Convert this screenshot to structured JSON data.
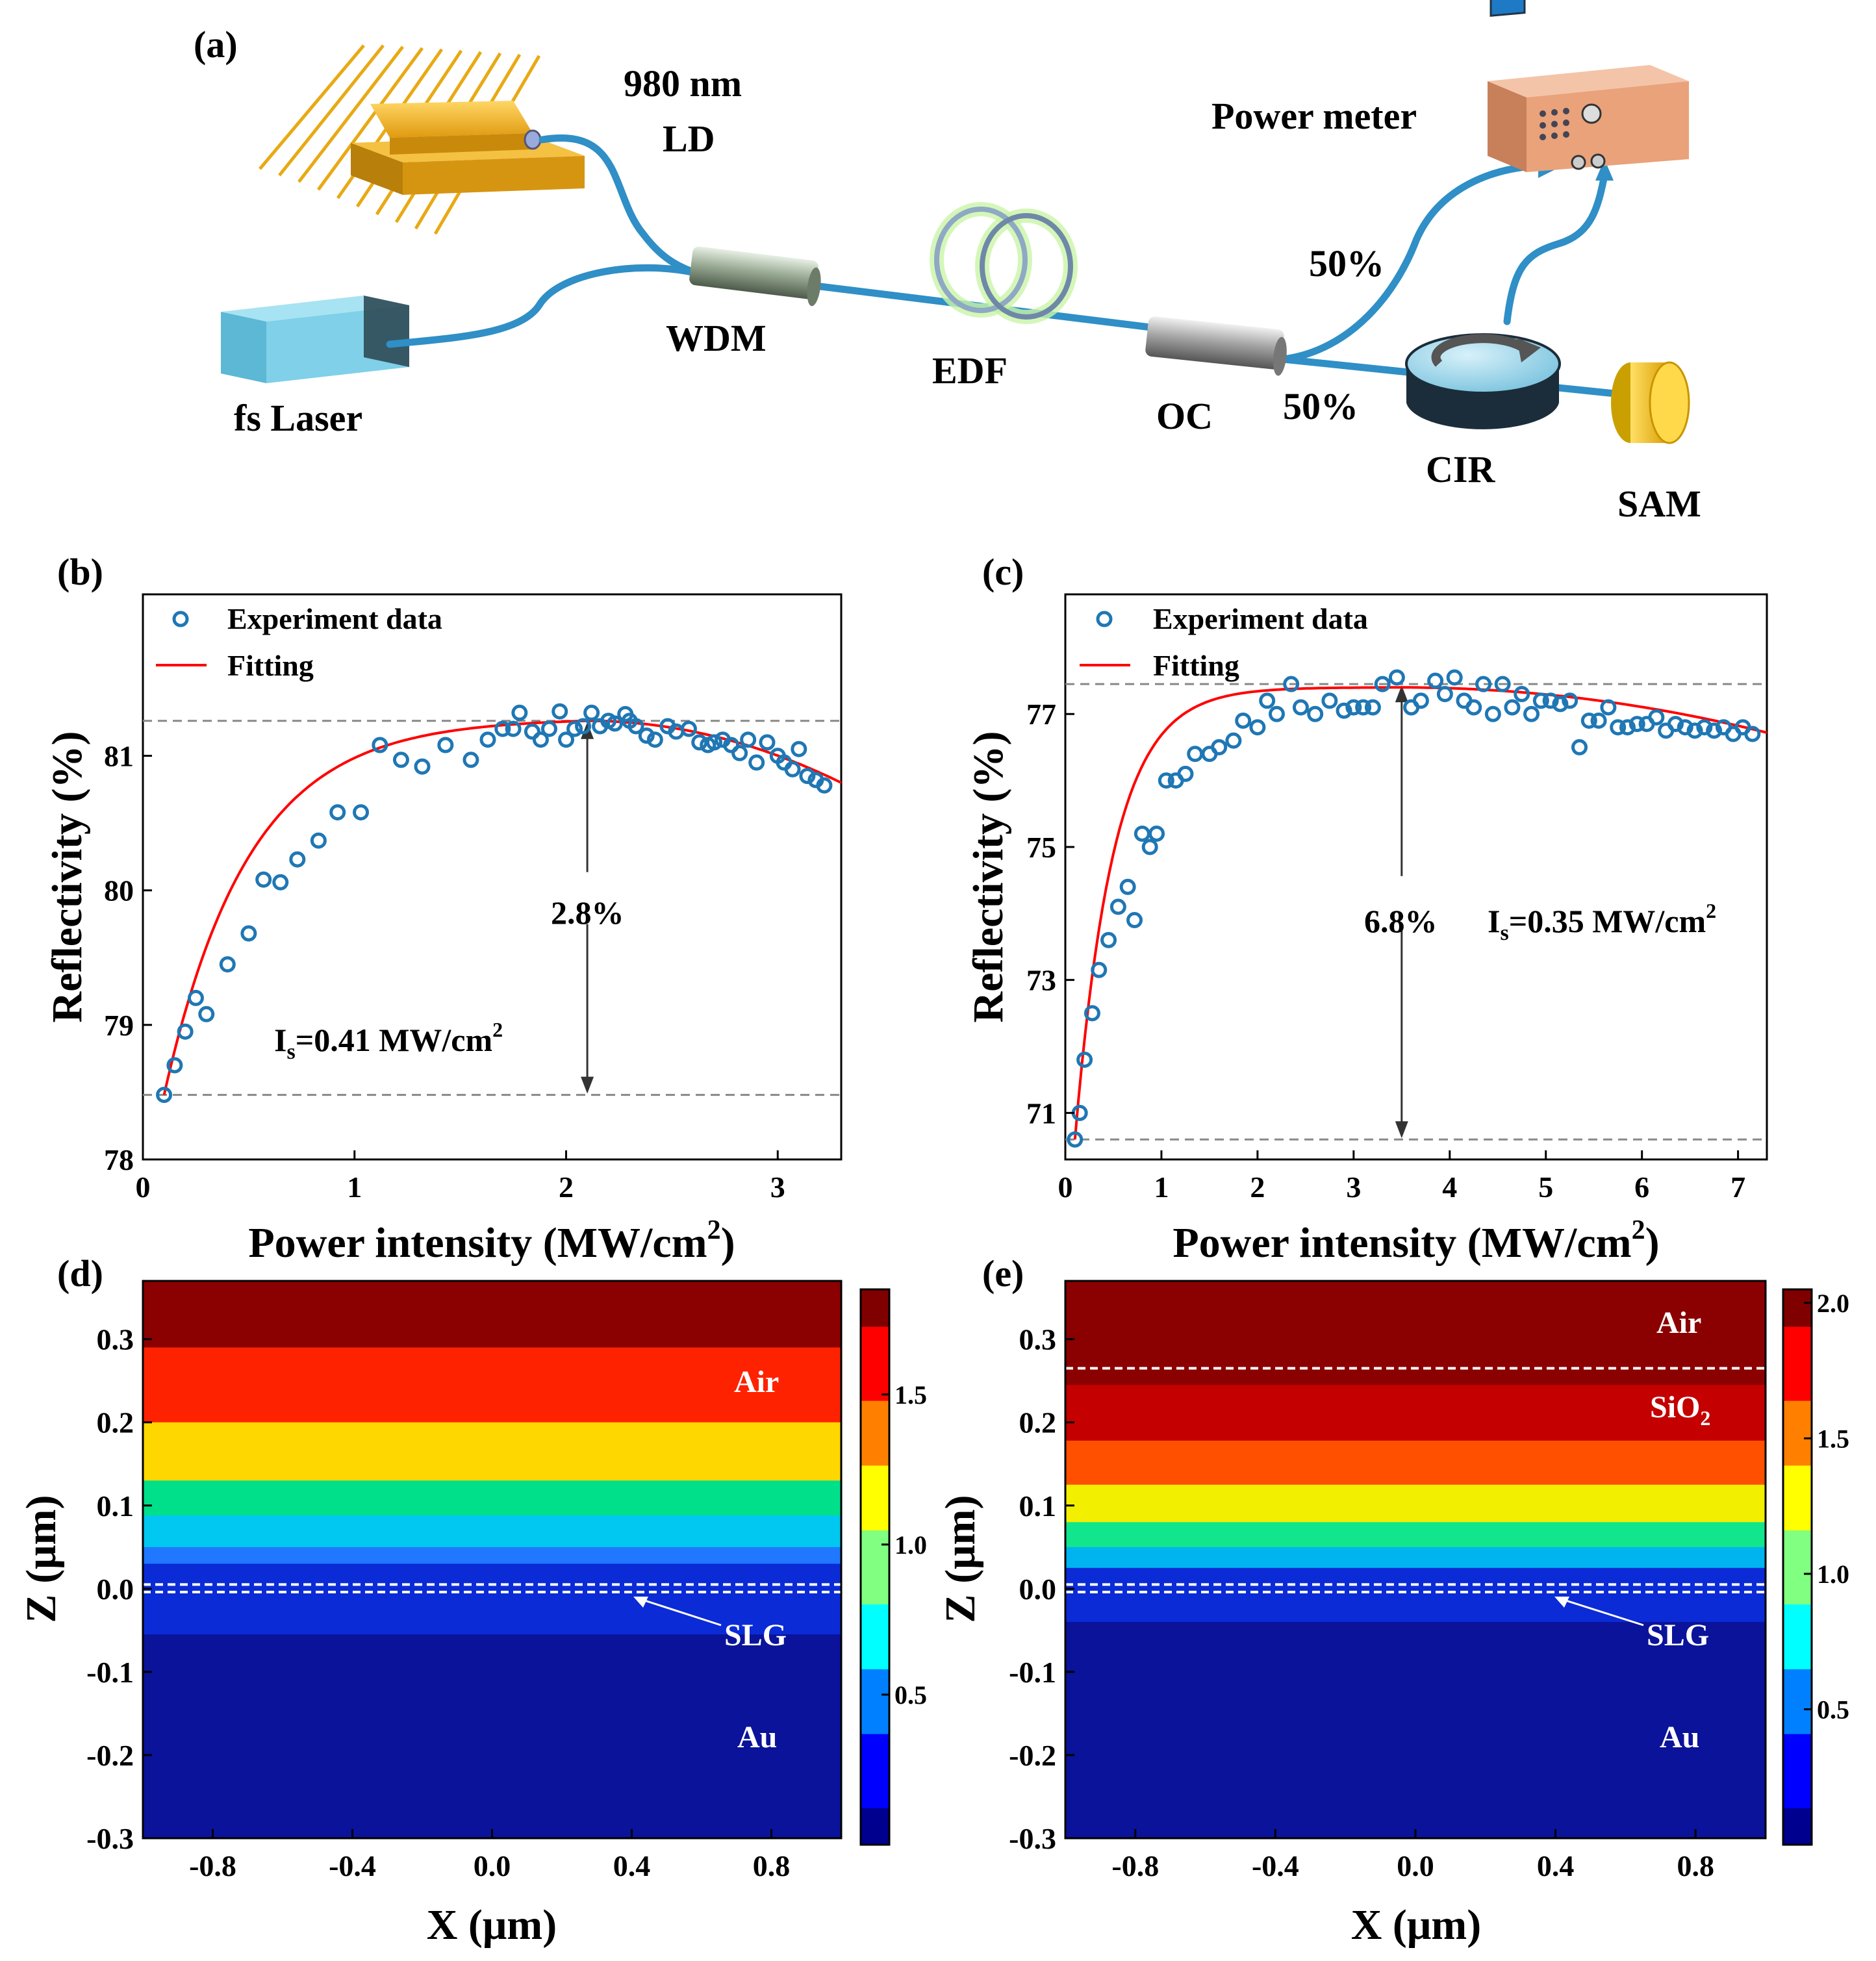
{
  "panels": {
    "a": "(a)",
    "b": "(b)",
    "c": "(c)",
    "d": "(d)",
    "e": "(e)"
  },
  "setup": {
    "ld_line1": "980 nm",
    "ld_line2": "LD",
    "fs_laser": "fs Laser",
    "wdm": "WDM",
    "edf": "EDF",
    "oc": "OC",
    "power_meter": "Power meter",
    "split_top": "50%",
    "split_bottom": "50%",
    "cir": "CIR",
    "sam": "SAM"
  },
  "colors": {
    "fiber": "#2f8fc6",
    "ld_gold": "#f2b01e",
    "fs_laser": "#7ccfe6",
    "meter": "#e9a27a",
    "fit": "#ff0000",
    "marker": "#1f77b4"
  },
  "chart_data": [
    {
      "id": "b",
      "type": "scatter",
      "xlabel": "Power intensity (MW/cm",
      "xlabel_sup": "2",
      "xlabel_end": ")",
      "ylabel": "Reflectivity (%)",
      "xlim": [
        0,
        3.3
      ],
      "ylim": [
        78,
        82.2
      ],
      "xticks": [
        0,
        1,
        2,
        3
      ],
      "yticks": [
        78,
        79,
        80,
        81
      ],
      "legend": [
        "Experiment data",
        "Fitting"
      ],
      "fit": {
        "Rmin": 78.48,
        "Rmax": 81.26,
        "xpeak": 2.1,
        "k": 2.5
      },
      "experiment": {
        "x": [
          0.1,
          0.15,
          0.2,
          0.25,
          0.3,
          0.4,
          0.5,
          0.57,
          0.65,
          0.73,
          0.83,
          0.92,
          1.03,
          1.12,
          1.22,
          1.32,
          1.43,
          1.55,
          1.63,
          1.7,
          1.75,
          1.78,
          1.84,
          1.88,
          1.92,
          1.97,
          2.0,
          2.04,
          2.08,
          2.12,
          2.16,
          2.2,
          2.23,
          2.28,
          2.3,
          2.33,
          2.38,
          2.42,
          2.48,
          2.52,
          2.58,
          2.63,
          2.67,
          2.7,
          2.74,
          2.78,
          2.82,
          2.86,
          2.9,
          2.95,
          3.0,
          3.03,
          3.07,
          3.1,
          3.14,
          3.18,
          3.22
        ],
        "y": [
          78.48,
          78.7,
          78.95,
          79.2,
          79.08,
          79.45,
          79.68,
          80.08,
          80.06,
          80.23,
          80.37,
          80.58,
          80.58,
          81.08,
          80.97,
          80.92,
          81.08,
          80.97,
          81.12,
          81.2,
          81.2,
          81.32,
          81.18,
          81.12,
          81.2,
          81.33,
          81.12,
          81.2,
          81.22,
          81.32,
          81.22,
          81.26,
          81.24,
          81.31,
          81.26,
          81.22,
          81.15,
          81.12,
          81.22,
          81.18,
          81.2,
          81.1,
          81.08,
          81.1,
          81.12,
          81.08,
          81.02,
          81.12,
          80.95,
          81.1,
          81.0,
          80.95,
          80.9,
          81.05,
          80.85,
          80.82,
          80.78
        ]
      },
      "arrow_label": "2.8%",
      "annotation": "I",
      "annotation_sub": "s",
      "annotation_val": "=0.41 MW/cm",
      "annotation_sup": "2",
      "hlines": [
        78.48,
        81.26
      ]
    },
    {
      "id": "c",
      "type": "scatter",
      "xlabel": "Power intensity (MW/cm",
      "xlabel_sup": "2",
      "xlabel_end": ")",
      "ylabel": "Reflectivity (%)",
      "xlim": [
        0,
        7.3
      ],
      "ylim": [
        70.3,
        78.8
      ],
      "xticks": [
        0,
        1,
        2,
        3,
        4,
        5,
        6,
        7
      ],
      "yticks": [
        71,
        73,
        75,
        77
      ],
      "legend": [
        "Experiment data",
        "Fitting"
      ],
      "fit": {
        "Rmin": 70.6,
        "Rmax": 77.4,
        "xpeak": 3.5,
        "k": 2.5
      },
      "experiment": {
        "x": [
          0.1,
          0.15,
          0.2,
          0.28,
          0.35,
          0.45,
          0.55,
          0.65,
          0.72,
          0.8,
          0.88,
          0.95,
          1.05,
          1.15,
          1.25,
          1.35,
          1.5,
          1.6,
          1.75,
          1.85,
          2.0,
          2.1,
          2.2,
          2.35,
          2.45,
          2.6,
          2.75,
          2.9,
          3.0,
          3.1,
          3.2,
          3.3,
          3.45,
          3.6,
          3.7,
          3.85,
          3.95,
          4.05,
          4.15,
          4.25,
          4.35,
          4.45,
          4.55,
          4.65,
          4.75,
          4.85,
          4.95,
          5.05,
          5.15,
          5.25,
          5.35,
          5.45,
          5.55,
          5.65,
          5.75,
          5.85,
          5.95,
          6.05,
          6.15,
          6.25,
          6.35,
          6.45,
          6.55,
          6.65,
          6.75,
          6.85,
          6.95,
          7.05,
          7.15
        ],
        "y": [
          70.6,
          71.0,
          71.8,
          72.5,
          73.15,
          73.6,
          74.1,
          74.4,
          73.9,
          75.2,
          75.0,
          75.2,
          76.0,
          76.0,
          76.1,
          76.4,
          76.4,
          76.5,
          76.6,
          76.9,
          76.8,
          77.2,
          77.0,
          77.45,
          77.1,
          77.0,
          77.2,
          77.05,
          77.1,
          77.1,
          77.1,
          77.45,
          77.55,
          77.1,
          77.2,
          77.5,
          77.3,
          77.55,
          77.2,
          77.1,
          77.45,
          77.0,
          77.45,
          77.1,
          77.3,
          77.0,
          77.2,
          77.2,
          77.15,
          77.2,
          76.5,
          76.9,
          76.9,
          77.1,
          76.8,
          76.8,
          76.85,
          76.85,
          76.95,
          76.75,
          76.85,
          76.8,
          76.75,
          76.8,
          76.75,
          76.8,
          76.7,
          76.8,
          76.7
        ]
      },
      "arrow_label": "6.8%",
      "annotation": "I",
      "annotation_sub": "s",
      "annotation_val": "=0.35 MW/cm",
      "annotation_sup": "2",
      "hlines": [
        70.6,
        77.45
      ]
    },
    {
      "id": "d",
      "type": "heatmap",
      "xlabel": "X (μm)",
      "ylabel": "Z (μm)",
      "xlim": [
        -1.0,
        1.0
      ],
      "ylim": [
        -0.3,
        0.37
      ],
      "xticks": [
        -0.8,
        -0.4,
        0.0,
        0.4,
        0.8
      ],
      "yticks": [
        -0.3,
        -0.2,
        -0.1,
        0.0,
        0.1,
        0.2,
        0.3
      ],
      "cbar_ticks": [
        0.5,
        1.0,
        1.5
      ],
      "cbar_range": [
        0,
        1.85
      ],
      "bands": [
        {
          "z0": 0.29,
          "z1": 0.37,
          "color": "#8b0000"
        },
        {
          "z0": 0.2,
          "z1": 0.29,
          "color": "#ff2200"
        },
        {
          "z0": 0.13,
          "z1": 0.2,
          "color": "#ffd700"
        },
        {
          "z0": 0.088,
          "z1": 0.13,
          "color": "#00e08a"
        },
        {
          "z0": 0.05,
          "z1": 0.088,
          "color": "#00c8f0"
        },
        {
          "z0": 0.03,
          "z1": 0.05,
          "color": "#1f78ff"
        },
        {
          "z0": -0.055,
          "z1": 0.03,
          "color": "#0b2bd6"
        },
        {
          "z0": -0.3,
          "z1": -0.055,
          "color": "#0a139a"
        }
      ],
      "dashed": [
        0.005,
        -0.004
      ],
      "labels": {
        "air": "Air",
        "slg": "SLG",
        "au": "Au"
      }
    },
    {
      "id": "e",
      "type": "heatmap",
      "xlabel": "X (μm)",
      "ylabel": "Z (μm)",
      "xlim": [
        -1.0,
        1.0
      ],
      "ylim": [
        -0.3,
        0.37
      ],
      "xticks": [
        -0.8,
        -0.4,
        0.0,
        0.4,
        0.8
      ],
      "yticks": [
        -0.3,
        -0.2,
        -0.1,
        0.0,
        0.1,
        0.2,
        0.3
      ],
      "cbar_ticks": [
        0.5,
        1.0,
        1.5,
        2.0
      ],
      "cbar_range": [
        0,
        2.05
      ],
      "bands": [
        {
          "z0": 0.245,
          "z1": 0.37,
          "color": "#8b0000"
        },
        {
          "z0": 0.178,
          "z1": 0.245,
          "color": "#c40000"
        },
        {
          "z0": 0.125,
          "z1": 0.178,
          "color": "#ff5000"
        },
        {
          "z0": 0.08,
          "z1": 0.125,
          "color": "#f2f000"
        },
        {
          "z0": 0.05,
          "z1": 0.08,
          "color": "#12e68c"
        },
        {
          "z0": 0.025,
          "z1": 0.05,
          "color": "#00b4f0"
        },
        {
          "z0": -0.04,
          "z1": 0.025,
          "color": "#0b2bd6"
        },
        {
          "z0": -0.3,
          "z1": -0.04,
          "color": "#0a139a"
        }
      ],
      "dashed": [
        0.265,
        0.005,
        -0.004
      ],
      "labels": {
        "air": "Air",
        "sio2": "SiO",
        "sio2_sub": "2",
        "slg": "SLG",
        "au": "Au"
      }
    }
  ]
}
